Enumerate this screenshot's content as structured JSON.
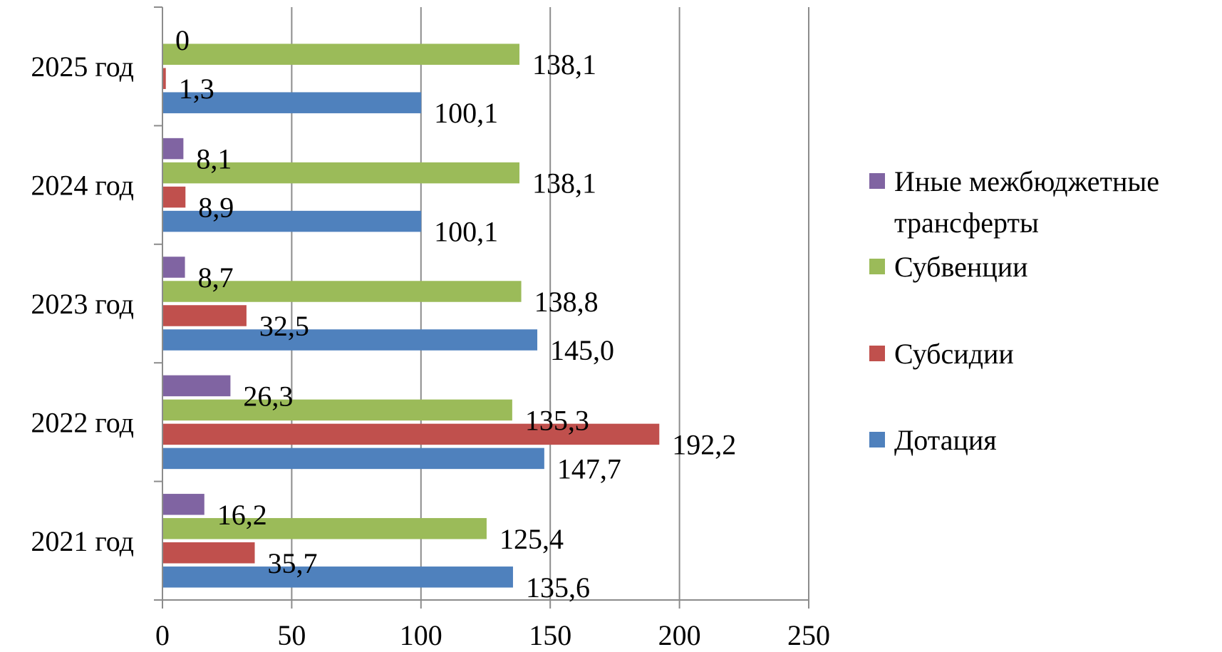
{
  "chart_data": {
    "type": "bar",
    "orientation": "horizontal",
    "title": "",
    "xlabel": "",
    "ylabel": "",
    "xlim": [
      0,
      250
    ],
    "xticks": [
      "0",
      "50",
      "100",
      "150",
      "200",
      "250"
    ],
    "xtick_values": [
      0,
      50,
      100,
      150,
      200,
      250
    ],
    "categories": [
      "2021 год",
      "2022 год",
      "2023 год",
      "2024 год",
      "2025 год"
    ],
    "grid": "vertical",
    "legend_position": "right",
    "series": [
      {
        "name": "Дотация",
        "color": "#4F81BD",
        "values": [
          135.6,
          147.7,
          145.0,
          100.1,
          100.1
        ],
        "labels": [
          "135,6",
          "147,7",
          "145,0",
          "100,1",
          "100,1"
        ]
      },
      {
        "name": "Субсидии",
        "color": "#C0504D",
        "values": [
          35.7,
          192.2,
          32.5,
          8.9,
          1.3
        ],
        "labels": [
          "35,7",
          "192,2",
          "32,5",
          "8,9",
          "1,3"
        ]
      },
      {
        "name": "Субвенции",
        "color": "#9BBB59",
        "values": [
          125.4,
          135.3,
          138.8,
          138.1,
          138.1
        ],
        "labels": [
          "125,4",
          "135,3",
          "138,8",
          "138,1",
          "138,1"
        ]
      },
      {
        "name": "Иные межбюджетные трансферты",
        "name_lines": [
          "Иные межбюджетные",
          "трансферты"
        ],
        "color": "#8064A2",
        "values": [
          16.2,
          26.3,
          8.7,
          8.1,
          0
        ],
        "labels": [
          "16,2",
          "26,3",
          "8,7",
          "8,1",
          "0"
        ]
      }
    ],
    "legend_order": [
      3,
      2,
      1,
      0
    ]
  }
}
